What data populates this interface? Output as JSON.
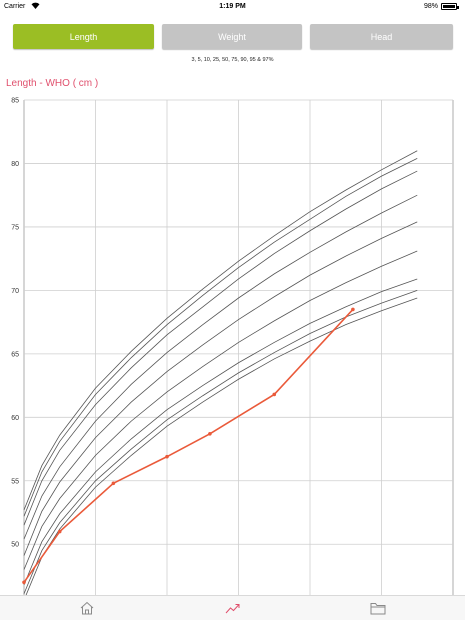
{
  "status_bar": {
    "carrier": "Carrier",
    "time": "1:19 PM",
    "battery": "98%"
  },
  "tabs": [
    {
      "label": "Length",
      "active": true
    },
    {
      "label": "Weight",
      "active": false
    },
    {
      "label": "Head",
      "active": false
    }
  ],
  "percentiles_label": "3, 5, 10, 25, 50, 75, 90, 95 & 97%",
  "chart_title": "Length - WHO ( cm )",
  "colors": {
    "active_tab": "#9bbe24",
    "inactive_tab": "#c4c4c4",
    "title": "#e0506d",
    "measurement_line": "#ea5a3a",
    "accent_icon": "#e0506d"
  },
  "chart_data": {
    "type": "line",
    "ylim": [
      46,
      85
    ],
    "y_ticks": [
      50,
      55,
      60,
      65,
      70,
      75,
      80,
      85
    ],
    "xlim": [
      0,
      6
    ],
    "x_gridlines": [
      1,
      2,
      3,
      4,
      5
    ],
    "grid": true,
    "percentile_curves": [
      {
        "x": [
          0,
          0.25,
          0.5,
          1,
          1.5,
          2,
          2.5,
          3,
          3.5,
          4,
          4.5,
          5,
          5.5
        ],
        "values": [
          45.6,
          49.0,
          51.2,
          54.5,
          57.0,
          59.3,
          61.2,
          63.0,
          64.6,
          66.0,
          67.3,
          68.4,
          69.4
        ]
      },
      {
        "x": [
          0,
          0.25,
          0.5,
          1,
          1.5,
          2,
          2.5,
          3,
          3.5,
          4,
          4.5,
          5,
          5.5
        ],
        "values": [
          46.1,
          49.5,
          51.7,
          55.0,
          57.5,
          59.8,
          61.7,
          63.5,
          65.1,
          66.6,
          67.9,
          69.0,
          70.0
        ]
      },
      {
        "x": [
          0,
          0.25,
          0.5,
          1,
          1.5,
          2,
          2.5,
          3,
          3.5,
          4,
          4.5,
          5,
          5.5
        ],
        "values": [
          46.8,
          50.2,
          52.4,
          55.7,
          58.3,
          60.6,
          62.5,
          64.3,
          65.9,
          67.4,
          68.7,
          69.9,
          70.9
        ]
      },
      {
        "x": [
          0,
          0.25,
          0.5,
          1,
          1.5,
          2,
          2.5,
          3,
          3.5,
          4,
          4.5,
          5,
          5.5
        ],
        "values": [
          48.0,
          51.4,
          53.6,
          57.0,
          59.7,
          62.0,
          64.0,
          65.9,
          67.6,
          69.2,
          70.6,
          71.9,
          73.1
        ]
      },
      {
        "x": [
          0,
          0.25,
          0.5,
          1,
          1.5,
          2,
          2.5,
          3,
          3.5,
          4,
          4.5,
          5,
          5.5
        ],
        "values": [
          49.1,
          52.6,
          54.9,
          58.4,
          61.2,
          63.6,
          65.7,
          67.7,
          69.5,
          71.2,
          72.7,
          74.1,
          75.4
        ]
      },
      {
        "x": [
          0,
          0.25,
          0.5,
          1,
          1.5,
          2,
          2.5,
          3,
          3.5,
          4,
          4.5,
          5,
          5.5
        ],
        "values": [
          50.4,
          53.8,
          56.1,
          59.7,
          62.6,
          65.1,
          67.3,
          69.4,
          71.3,
          73.0,
          74.6,
          76.1,
          77.5
        ]
      },
      {
        "x": [
          0,
          0.25,
          0.5,
          1,
          1.5,
          2,
          2.5,
          3,
          3.5,
          4,
          4.5,
          5,
          5.5
        ],
        "values": [
          51.5,
          55.0,
          57.4,
          61.0,
          63.9,
          66.5,
          68.7,
          70.9,
          72.9,
          74.7,
          76.4,
          78.0,
          79.4
        ]
      },
      {
        "x": [
          0,
          0.25,
          0.5,
          1,
          1.5,
          2,
          2.5,
          3,
          3.5,
          4,
          4.5,
          5,
          5.5
        ],
        "values": [
          52.2,
          55.7,
          58.1,
          61.8,
          64.7,
          67.3,
          69.6,
          71.8,
          73.8,
          75.6,
          77.4,
          79.0,
          80.4
        ]
      },
      {
        "x": [
          0,
          0.25,
          0.5,
          1,
          1.5,
          2,
          2.5,
          3,
          3.5,
          4,
          4.5,
          5,
          5.5
        ],
        "values": [
          52.7,
          56.2,
          58.6,
          62.3,
          65.2,
          67.8,
          70.1,
          72.3,
          74.3,
          76.2,
          77.9,
          79.5,
          81.0
        ]
      }
    ],
    "series": [
      {
        "x": [
          0.0,
          0.5,
          1.25,
          2.0,
          2.6,
          3.5,
          4.6
        ],
        "values": [
          47.0,
          51.0,
          54.8,
          56.9,
          58.7,
          61.8,
          68.5
        ]
      }
    ]
  },
  "bottom_bar": [
    {
      "icon": "home-icon"
    },
    {
      "icon": "chart-trend-icon"
    },
    {
      "icon": "folder-icon"
    }
  ]
}
